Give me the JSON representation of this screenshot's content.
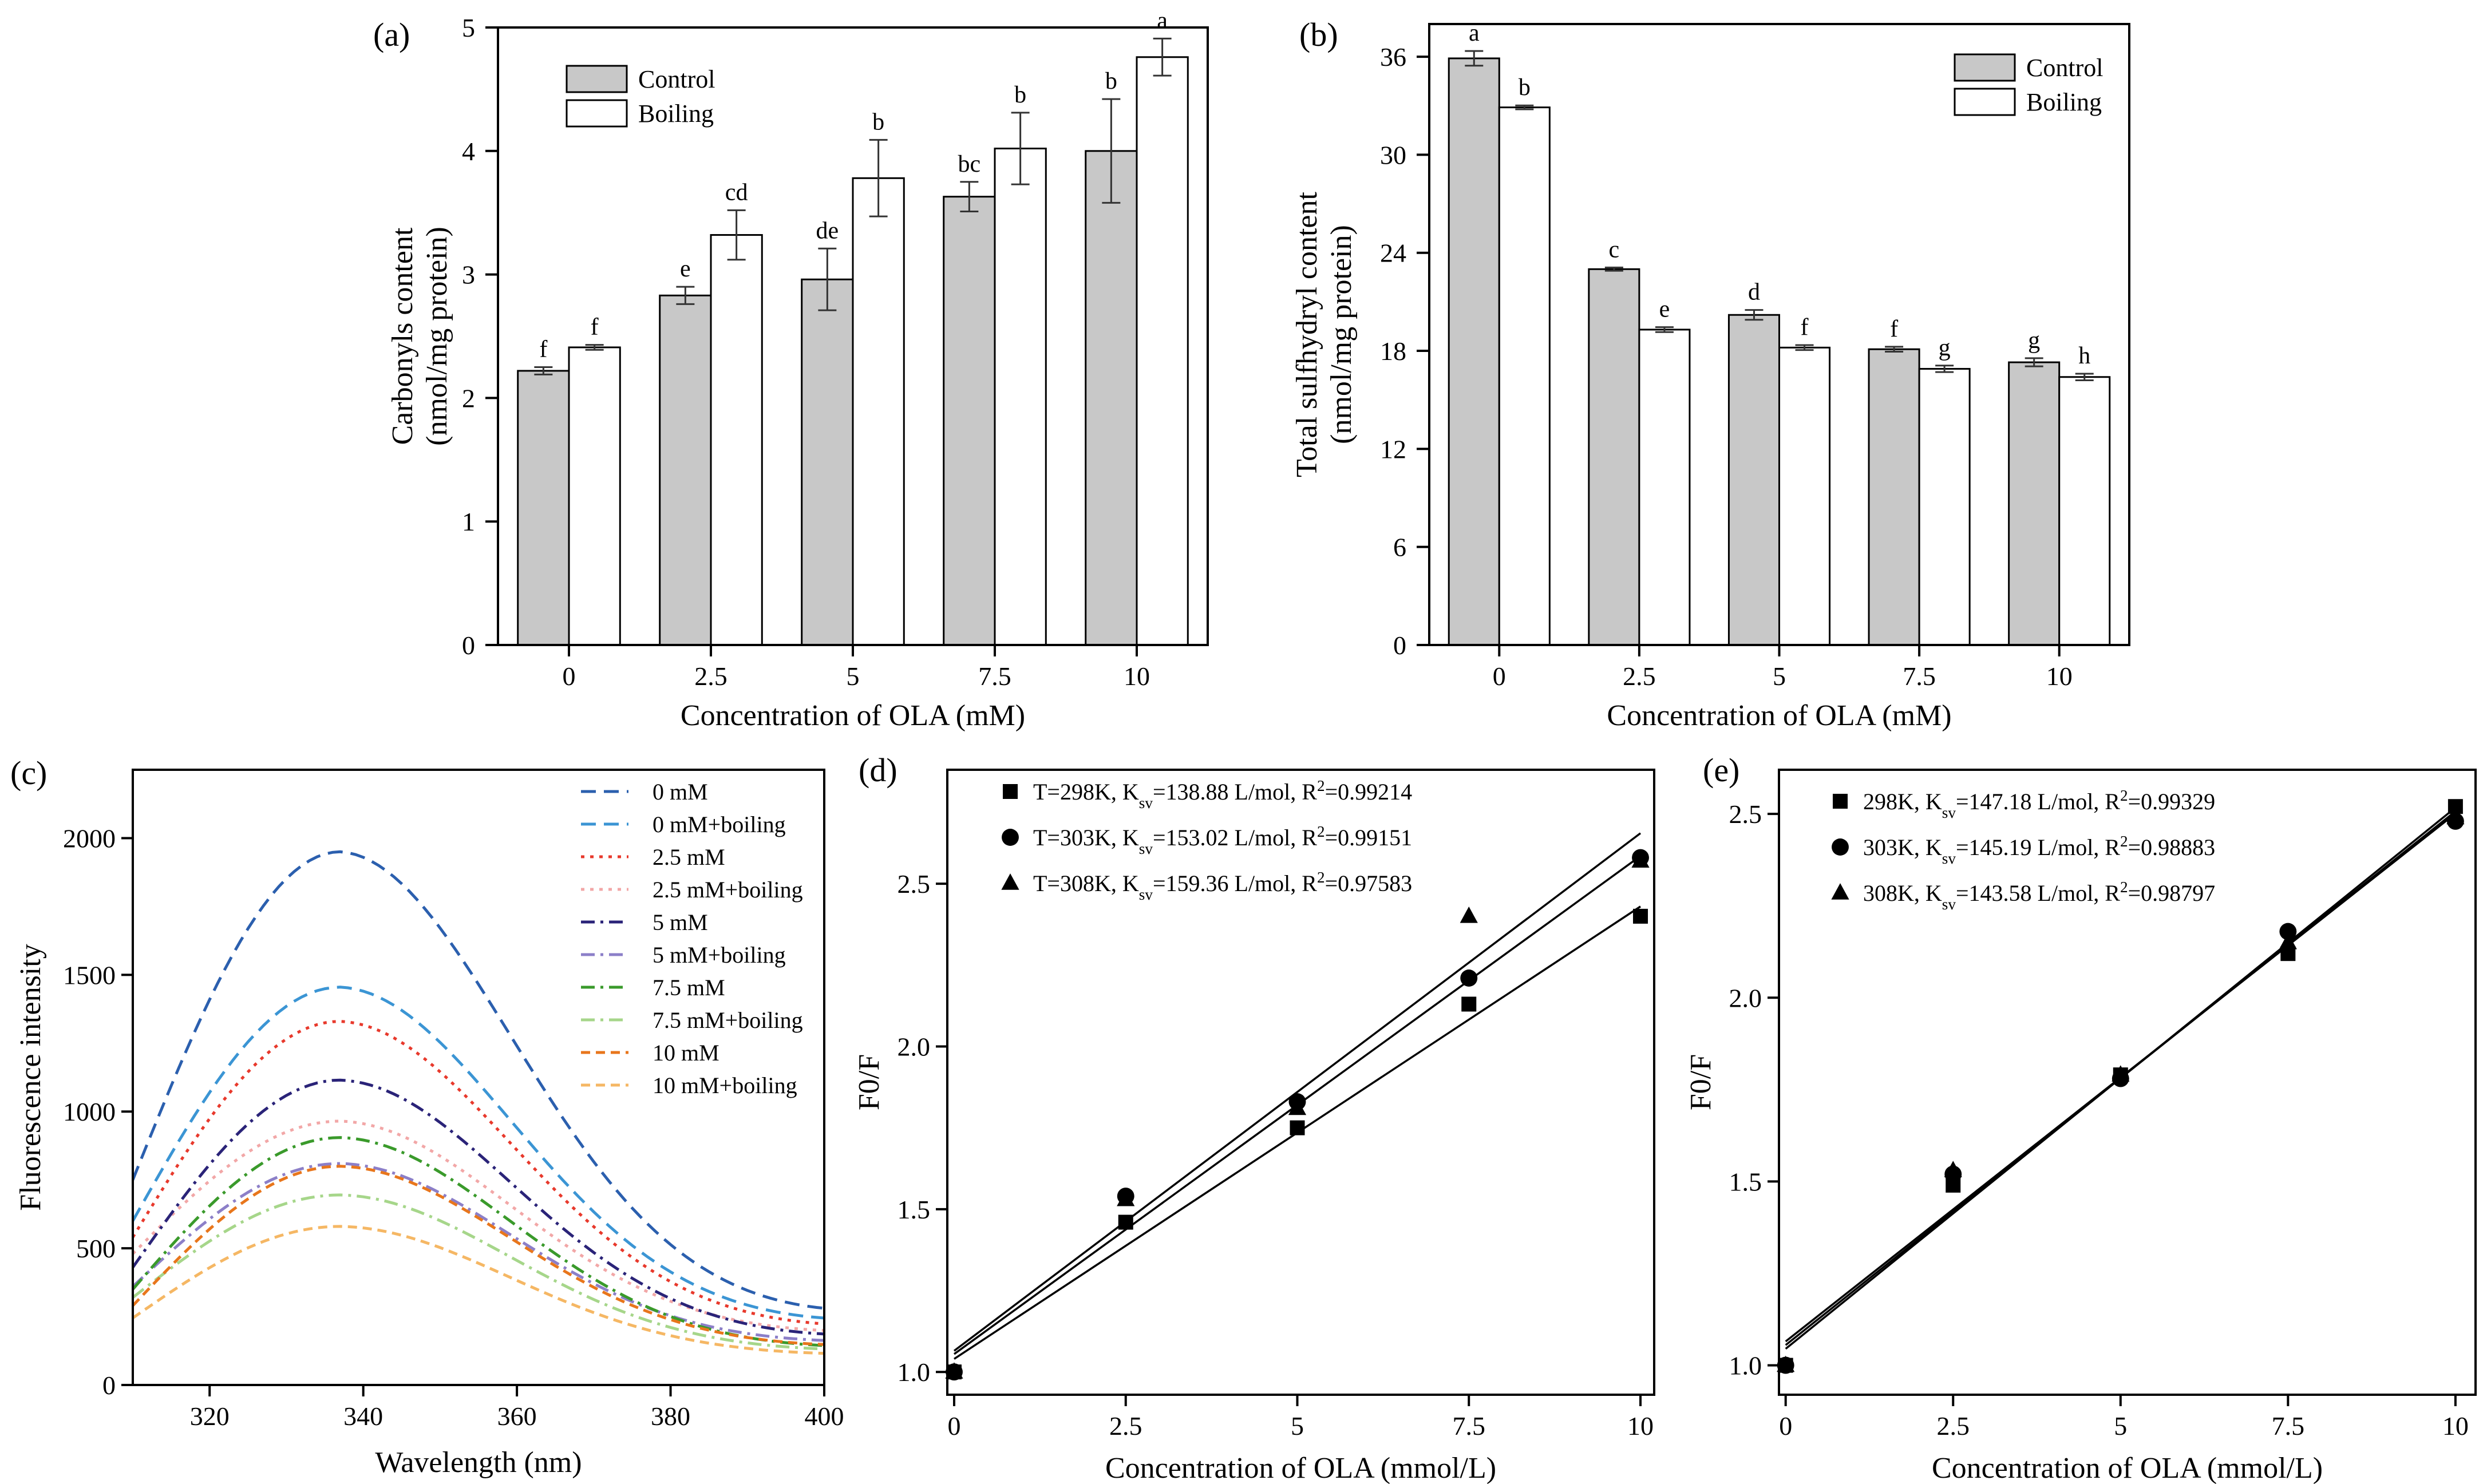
{
  "chart_data": [
    {
      "type": "bar",
      "panel": "(a)",
      "xlabel": "Concentration of OLA (mM)",
      "ylabel": [
        "Carbonyls content",
        "(nmol/mg protein)"
      ],
      "ylim": [
        0,
        5
      ],
      "yticks": [
        0,
        1,
        2,
        3,
        4,
        5
      ],
      "categories": [
        "0",
        "2.5",
        "5",
        "7.5",
        "10"
      ],
      "series": [
        {
          "name": "Control",
          "color": "#c8c8c8",
          "values": [
            2.22,
            2.83,
            2.96,
            3.63,
            4.0
          ],
          "errors": [
            0.03,
            0.07,
            0.25,
            0.12,
            0.42
          ],
          "letters": [
            "f",
            "e",
            "de",
            "bc",
            "b"
          ]
        },
        {
          "name": "Boiling",
          "color": "#ffffff",
          "values": [
            2.41,
            3.32,
            3.78,
            4.02,
            4.76
          ],
          "errors": [
            0.02,
            0.2,
            0.31,
            0.29,
            0.15
          ],
          "letters": [
            "f",
            "cd",
            "b",
            "b",
            "a"
          ]
        }
      ],
      "legend": [
        "Control",
        "Boiling"
      ]
    },
    {
      "type": "bar",
      "panel": "(b)",
      "xlabel": "Concentration of OLA (mM)",
      "ylabel": [
        "Total sulfhydryl content",
        "(nmol/mg protein)"
      ],
      "ylim": [
        0,
        38
      ],
      "yticks": [
        0,
        6,
        12,
        18,
        24,
        30,
        36
      ],
      "categories": [
        "0",
        "2.5",
        "5",
        "7.5",
        "10"
      ],
      "series": [
        {
          "name": "Control",
          "color": "#c8c8c8",
          "values": [
            35.9,
            23.0,
            20.2,
            18.1,
            17.3
          ],
          "errors": [
            0.45,
            0.1,
            0.3,
            0.15,
            0.25
          ],
          "letters": [
            "a",
            "c",
            "d",
            "f",
            "g"
          ]
        },
        {
          "name": "Boiling",
          "color": "#ffffff",
          "values": [
            32.9,
            19.3,
            18.2,
            16.9,
            16.4
          ],
          "errors": [
            0.12,
            0.15,
            0.15,
            0.2,
            0.2
          ],
          "letters": [
            "b",
            "e",
            "f",
            "g",
            "h"
          ]
        }
      ],
      "legend": [
        "Control",
        "Boiling"
      ]
    },
    {
      "type": "line",
      "panel": "(c)",
      "xlabel": "Wavelength (nm)",
      "ylabel": "Fluorescence intensity",
      "xlim": [
        310,
        400
      ],
      "ylim": [
        0,
        2250
      ],
      "xticks": [
        320,
        340,
        360,
        380,
        400
      ],
      "yticks": [
        0,
        500,
        1000,
        1500,
        2000
      ],
      "peak_wavelength": 337,
      "series": [
        {
          "name": "0 mM",
          "color": "#2b5fae",
          "dash": "long",
          "peak": 1950,
          "start": 750,
          "end": 260
        },
        {
          "name": "0 mM+boiling",
          "color": "#3b95d4",
          "dash": "long",
          "peak": 1455,
          "start": 600,
          "end": 230
        },
        {
          "name": "2.5 mM",
          "color": "#e8392c",
          "dash": "dot",
          "peak": 1330,
          "start": 540,
          "end": 210
        },
        {
          "name": "2.5 mM+boiling",
          "color": "#f2a7a7",
          "dash": "dot",
          "peak": 965,
          "start": 480,
          "end": 190
        },
        {
          "name": "5 mM",
          "color": "#2a2378",
          "dash": "dashdot",
          "peak": 1115,
          "start": 430,
          "end": 175
        },
        {
          "name": "5 mM+boiling",
          "color": "#8c7fc8",
          "dash": "dashdot",
          "peak": 810,
          "start": 360,
          "end": 155
        },
        {
          "name": "7.5 mM",
          "color": "#3a9a2b",
          "dash": "dashdot",
          "peak": 905,
          "start": 350,
          "end": 135
        },
        {
          "name": "7.5 mM+boiling",
          "color": "#a6d68a",
          "dash": "dashdot",
          "peak": 695,
          "start": 320,
          "end": 125
        },
        {
          "name": "10 mM",
          "color": "#e8761c",
          "dash": "mid",
          "peak": 800,
          "start": 290,
          "end": 140
        },
        {
          "name": "10 mM+boiling",
          "color": "#f5b764",
          "dash": "mid",
          "peak": 580,
          "start": 245,
          "end": 110
        }
      ]
    },
    {
      "type": "scatter",
      "panel": "(d)",
      "xlabel": "Concentration of OLA (mmol/L)",
      "ylabel": "F0/F",
      "xlim": [
        -0.1,
        10.2
      ],
      "ylim": [
        0.93,
        2.85
      ],
      "xticks": [
        0,
        2.5,
        5,
        7.5,
        10
      ],
      "xtick_labels": [
        "0",
        "2.5",
        "5",
        "7.5",
        "10"
      ],
      "yticks": [
        1.0,
        1.5,
        2.0,
        2.5
      ],
      "ytick_labels": [
        "1.0",
        "1.5",
        "2.0",
        "2.5"
      ],
      "series": [
        {
          "name": "T=298K",
          "marker": "square",
          "ksv_label": "138.88 L/mol",
          "r2_label": "0.99214",
          "x": [
            0,
            2.5,
            5,
            7.5,
            10
          ],
          "y": [
            1.0,
            1.46,
            1.75,
            2.13,
            2.4
          ],
          "fit": [
            1.04,
            0.139
          ]
        },
        {
          "name": "T=303K",
          "marker": "circle",
          "ksv_label": "153.02 L/mol",
          "r2_label": "0.99151",
          "x": [
            0,
            2.5,
            5,
            7.5,
            10
          ],
          "y": [
            1.0,
            1.54,
            1.83,
            2.21,
            2.58
          ],
          "fit": [
            1.055,
            0.153
          ]
        },
        {
          "name": "T=308K",
          "marker": "triangle",
          "ksv_label": "159.36 L/mol",
          "r2_label": "0.97583",
          "x": [
            0,
            2.5,
            5,
            7.5,
            10
          ],
          "y": [
            1.0,
            1.53,
            1.81,
            2.4,
            2.57
          ],
          "fit": [
            1.065,
            0.159
          ]
        }
      ],
      "legend_text": {
        "ksv": "K",
        "ksv_sub": "sv",
        "r2": "R",
        "r2_sup": "2"
      }
    },
    {
      "type": "scatter",
      "panel": "(e)",
      "xlabel": "Concentration of OLA (mmol/L)",
      "ylabel": "F0/F",
      "xlim": [
        -0.1,
        10.3
      ],
      "ylim": [
        0.92,
        2.62
      ],
      "xticks": [
        0,
        2.5,
        5,
        7.5,
        10
      ],
      "xtick_labels": [
        "0",
        "2.5",
        "5",
        "7.5",
        "10"
      ],
      "yticks": [
        1.0,
        1.5,
        2.0,
        2.5
      ],
      "ytick_labels": [
        "1.0",
        "1.5",
        "2.0",
        "2.5"
      ],
      "series": [
        {
          "name": "298K",
          "marker": "square",
          "ksv_label": "147.18 L/mol",
          "r2_label": "0.99329",
          "x": [
            0,
            2.5,
            5,
            7.5,
            10
          ],
          "y": [
            1.0,
            1.49,
            1.79,
            2.12,
            2.52
          ],
          "fit": [
            1.045,
            0.1472
          ]
        },
        {
          "name": "303K",
          "marker": "circle",
          "ksv_label": "145.19 L/mol",
          "r2_label": "0.98883",
          "x": [
            0,
            2.5,
            5,
            7.5,
            10
          ],
          "y": [
            1.0,
            1.52,
            1.78,
            2.18,
            2.48
          ],
          "fit": [
            1.055,
            0.1452
          ]
        },
        {
          "name": "308K",
          "marker": "triangle",
          "ksv_label": "143.58 L/mol",
          "r2_label": "0.98797",
          "x": [
            0,
            2.5,
            5,
            7.5,
            10
          ],
          "y": [
            1.0,
            1.53,
            1.79,
            2.15,
            2.49
          ],
          "fit": [
            1.065,
            0.1436
          ]
        }
      ],
      "legend_text": {
        "ksv": "K",
        "ksv_sub": "sv",
        "r2": "R",
        "r2_sup": "2"
      }
    }
  ]
}
